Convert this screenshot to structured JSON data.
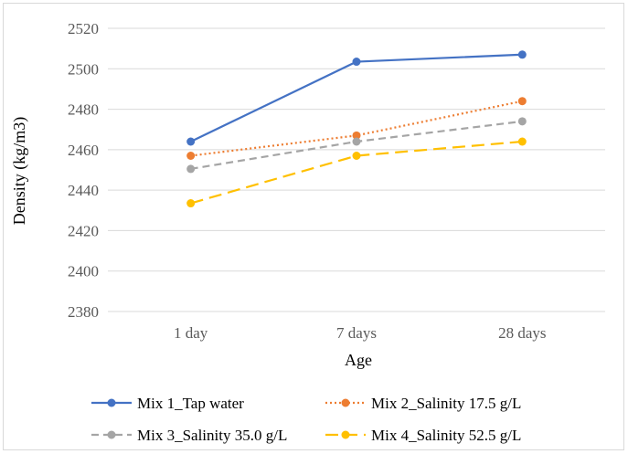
{
  "chart_data": {
    "type": "line",
    "categories": [
      "1 day",
      "7 days",
      "28 days"
    ],
    "xlabel": "Age",
    "ylabel": "Density (kg/m3)",
    "ylim": [
      2380,
      2520
    ],
    "yticks": [
      2380,
      2400,
      2420,
      2440,
      2460,
      2480,
      2500,
      2520
    ],
    "grid": "horizontal",
    "legend_position": "bottom",
    "series": [
      {
        "name": "Mix 1_Tap water",
        "values": [
          2464,
          2503.5,
          2507
        ],
        "color": "#4472C4",
        "dash": "solid"
      },
      {
        "name": "Mix 2_Salinity 17.5 g/L",
        "values": [
          2457,
          2467,
          2484
        ],
        "color": "#ED7D31",
        "dash": "dotted"
      },
      {
        "name": "Mix 3_Salinity 35.0 g/L",
        "values": [
          2450.5,
          2464,
          2474
        ],
        "color": "#A5A5A5",
        "dash": "dashed"
      },
      {
        "name": "Mix 4_Salinity 52.5 g/L",
        "values": [
          2433.5,
          2457,
          2464
        ],
        "color": "#FFC000",
        "dash": "longdash"
      }
    ]
  }
}
